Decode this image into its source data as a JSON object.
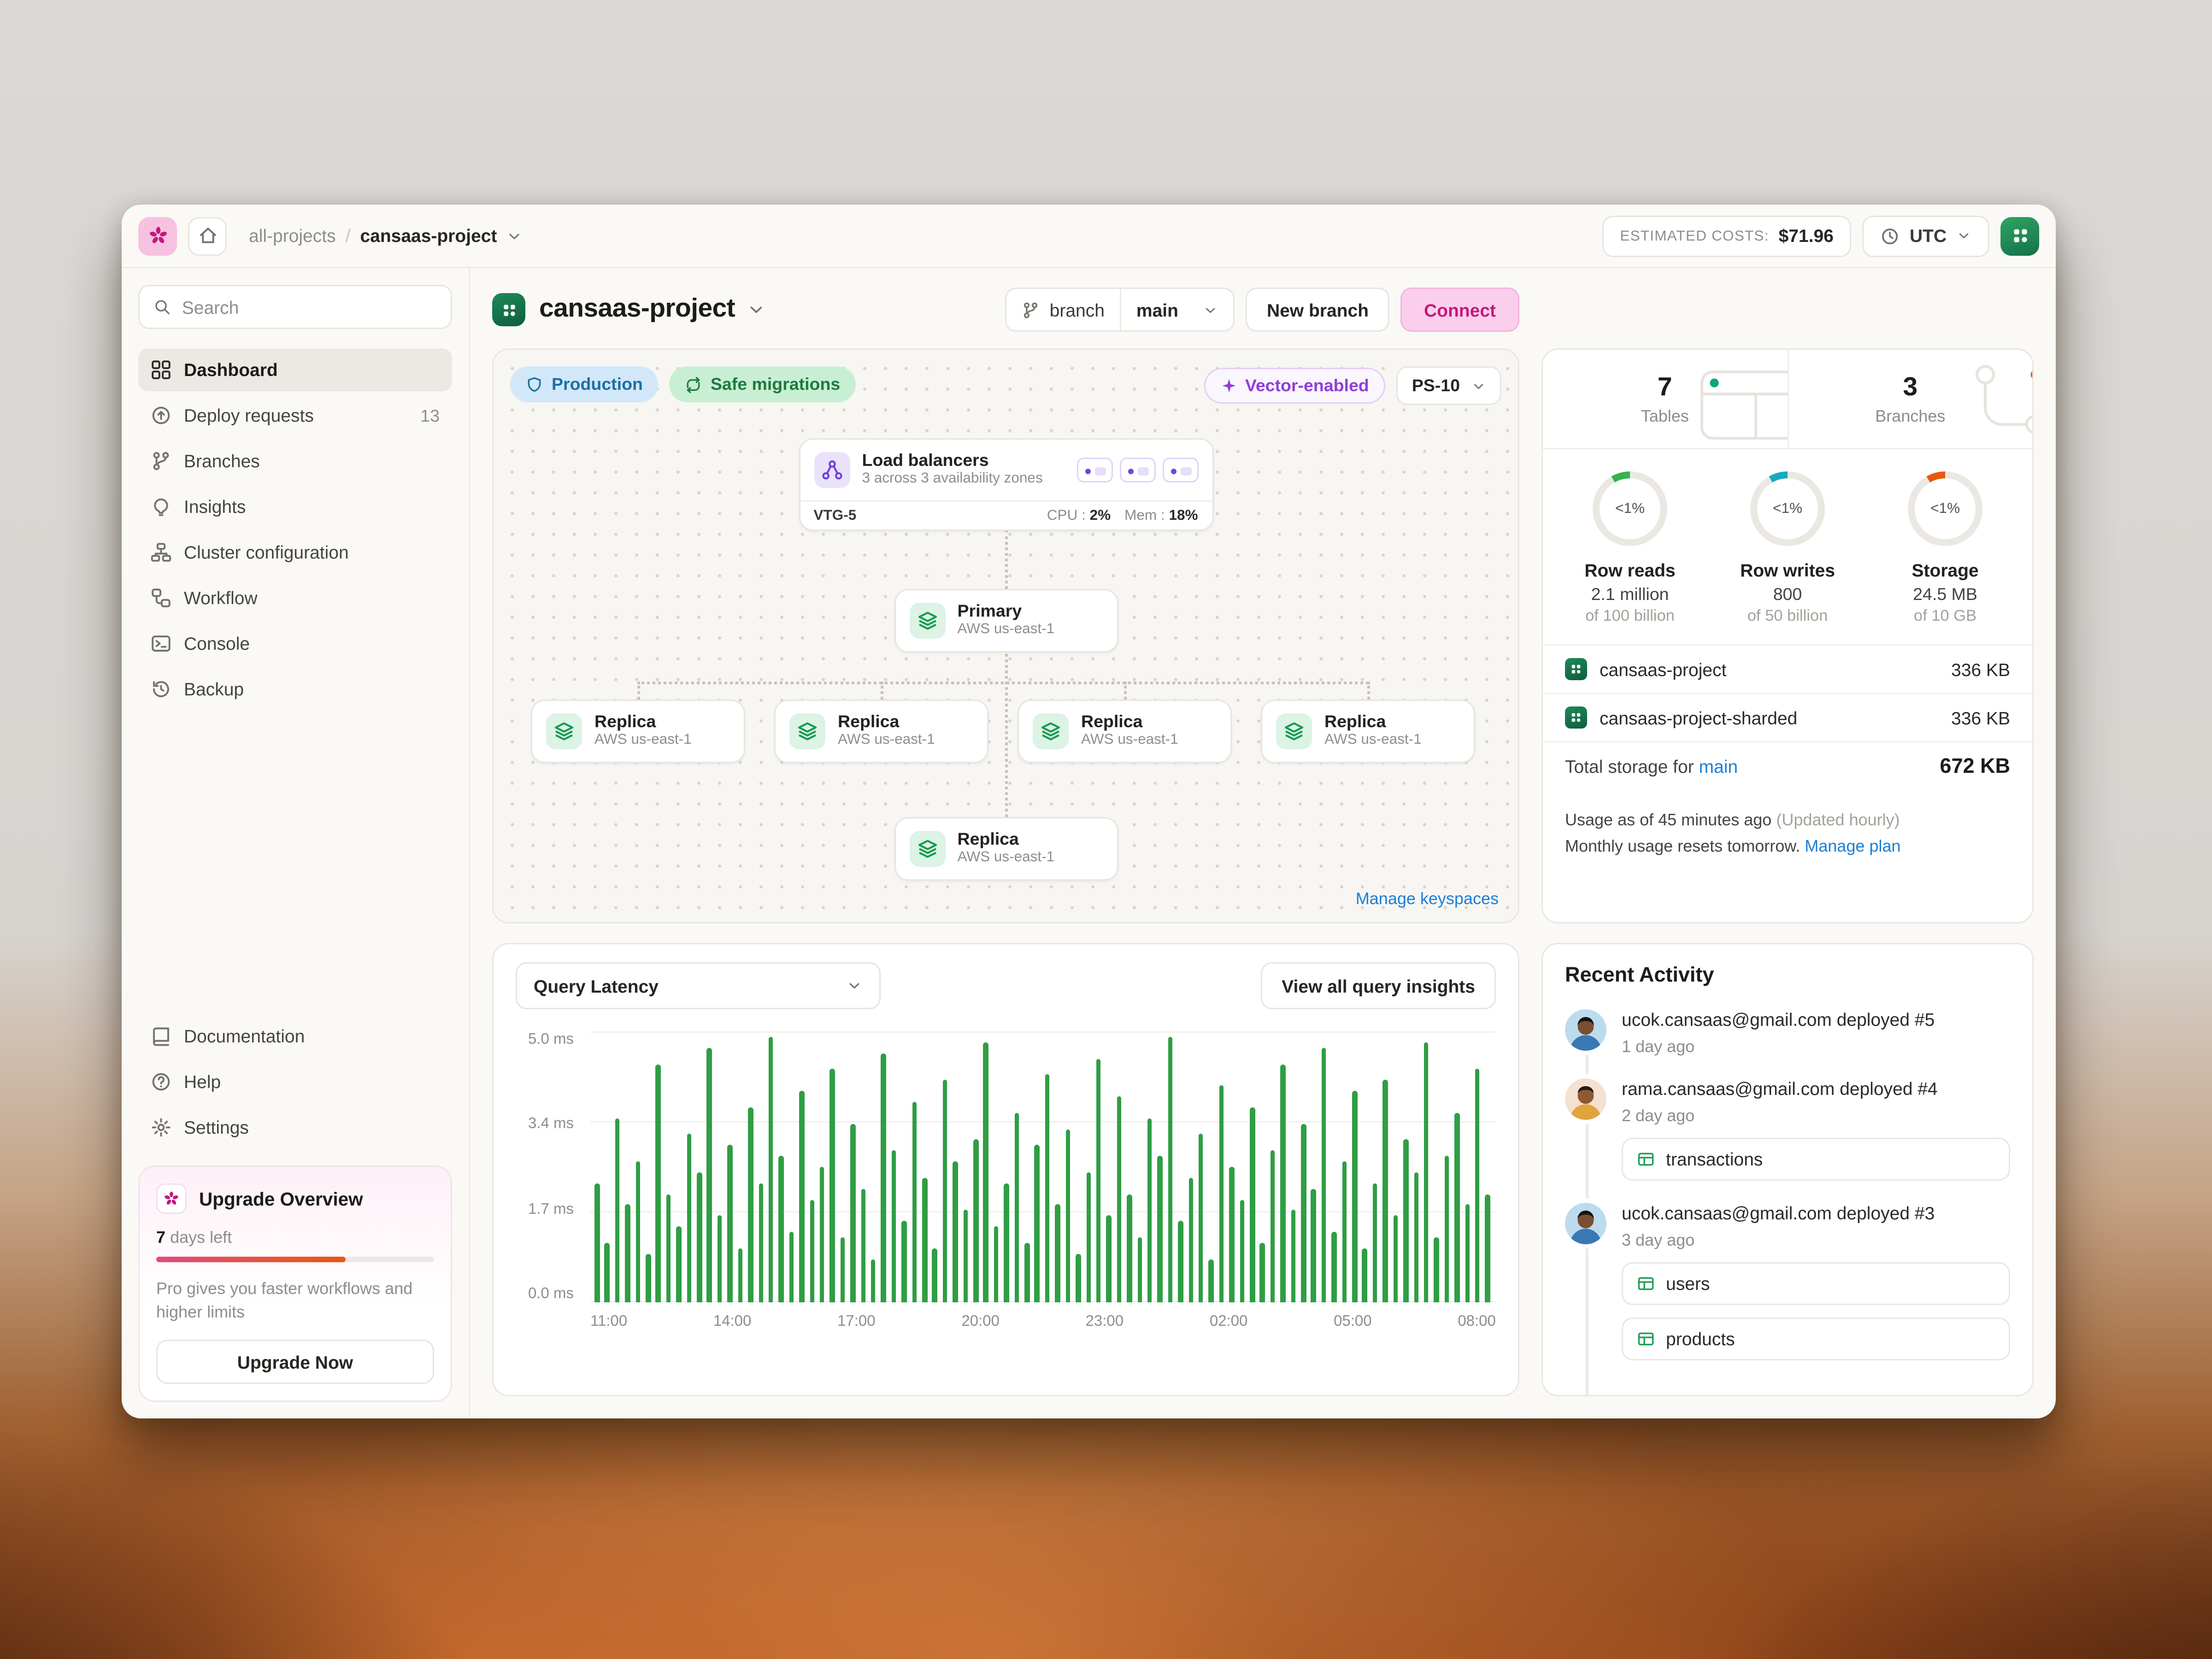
{
  "colors": {
    "accent_pink": "#c2187f",
    "connect_bg": "#fbcfec",
    "chart_green": "#2f9e44",
    "link_blue": "#1c7ed6",
    "production_blue": "#1d6fa5",
    "safe_green": "#1f7a3d",
    "vector_purple": "#8f3ed6"
  },
  "topbar": {
    "breadcrumb": {
      "parent": "all-projects",
      "separator": "/",
      "current": "cansaas-project"
    },
    "estimated_costs": {
      "label": "ESTIMATED COSTS:",
      "value": "$71.96"
    },
    "timezone": "UTC"
  },
  "sidebar": {
    "search_placeholder": "Search",
    "items": [
      {
        "label": "Dashboard"
      },
      {
        "label": "Deploy requests",
        "badge": "13"
      },
      {
        "label": "Branches"
      },
      {
        "label": "Insights"
      },
      {
        "label": "Cluster configuration"
      },
      {
        "label": "Workflow"
      },
      {
        "label": "Console"
      },
      {
        "label": "Backup"
      }
    ],
    "footer_items": [
      {
        "label": "Documentation"
      },
      {
        "label": "Help"
      },
      {
        "label": "Settings"
      }
    ],
    "upgrade": {
      "title": "Upgrade Overview",
      "days_value": "7",
      "days_label": "days left",
      "progress_pct": 68,
      "description": "Pro gives you faster workflows and higher limits",
      "button_label": "Upgrade Now"
    }
  },
  "header": {
    "title": "cansaas-project",
    "branch_label": "branch",
    "branch_value": "main",
    "new_branch_label": "New branch",
    "connect_label": "Connect"
  },
  "cluster": {
    "badges": {
      "production": "Production",
      "safe_migrations": "Safe migrations",
      "vector": "Vector-enabled",
      "size": "PS-10"
    },
    "load_balancers": {
      "title": "Load balancers",
      "subtitle": "3 across 3 availability zones"
    },
    "vtg": {
      "label": "VTG-5",
      "cpu_label": "CPU :",
      "cpu_value": "2%",
      "mem_label": "Mem :",
      "mem_value": "18%"
    },
    "primary": {
      "title": "Primary",
      "subtitle": "AWS us-east-1"
    },
    "replicas": [
      {
        "title": "Replica",
        "subtitle": "AWS us-east-1"
      },
      {
        "title": "Replica",
        "subtitle": "AWS us-east-1"
      },
      {
        "title": "Replica",
        "subtitle": "AWS us-east-1"
      },
      {
        "title": "Replica",
        "subtitle": "AWS us-east-1"
      },
      {
        "title": "Replica",
        "subtitle": "AWS us-east-1"
      }
    ],
    "manage_link": "Manage keyspaces"
  },
  "latency": {
    "selector_label": "Query Latency",
    "view_all_label": "View all query insights",
    "chart_data": {
      "type": "bar",
      "title": "Query Latency",
      "unit": "ms",
      "ylim": [
        0,
        5
      ],
      "grid": true,
      "yticks": [
        "5.0 ms",
        "3.4 ms",
        "1.7 ms",
        "0.0 ms"
      ],
      "xticks": [
        "11:00",
        "14:00",
        "17:00",
        "20:00",
        "23:00",
        "02:00",
        "05:00",
        "08:00"
      ],
      "bar_color": "#2f9e44",
      "values": [
        2.2,
        1.1,
        3.4,
        1.8,
        2.6,
        0.9,
        4.4,
        2.0,
        1.4,
        3.1,
        2.4,
        4.7,
        1.6,
        2.9,
        1.0,
        3.6,
        2.2,
        4.9,
        2.7,
        1.3,
        3.9,
        1.9,
        2.5,
        4.3,
        1.2,
        3.3,
        2.1,
        0.8,
        4.6,
        2.8,
        1.5,
        3.7,
        2.3,
        1.0,
        4.1,
        2.6,
        1.7,
        3.0,
        4.8,
        1.4,
        2.2,
        3.5,
        1.1,
        2.9,
        4.2,
        1.8,
        3.2,
        0.9,
        2.4,
        4.5,
        1.6,
        3.8,
        2.0,
        1.2,
        3.4,
        2.7,
        4.9,
        1.5,
        2.3,
        3.1,
        0.8,
        4.0,
        2.5,
        1.9,
        3.6,
        1.1,
        2.8,
        4.4,
        1.7,
        3.3,
        2.1,
        4.7,
        1.3,
        2.6,
        3.9,
        1.0,
        2.2,
        4.1,
        1.6,
        3.0,
        2.4,
        4.8,
        1.2,
        2.7,
        3.5,
        1.8,
        4.3,
        2.0
      ]
    }
  },
  "usage": {
    "tables": {
      "value": "7",
      "label": "Tables"
    },
    "branches": {
      "value": "3",
      "label": "Branches"
    },
    "gauges": [
      {
        "percent": "<1%",
        "title": "Row reads",
        "value": "2.1 million",
        "denom": "of 100 billion",
        "color": "#37b24d"
      },
      {
        "percent": "<1%",
        "title": "Row writes",
        "value": "800",
        "denom": "of 50 billion",
        "color": "#15aabf"
      },
      {
        "percent": "<1%",
        "title": "Storage",
        "value": "24.5 MB",
        "denom": "of 10 GB",
        "color": "#e8590c"
      }
    ],
    "rows": [
      {
        "name": "cansaas-project",
        "size": "336 KB"
      },
      {
        "name": "cansaas-project-sharded",
        "size": "336 KB"
      }
    ],
    "total_prefix": "Total storage for",
    "total_branch": "main",
    "total_value": "672 KB",
    "note1": "Usage as of 45 minutes ago",
    "note1_sub": "(Updated hourly)",
    "note2": "Monthly usage resets tomorrow.",
    "manage_plan": "Manage plan"
  },
  "activity": {
    "title": "Recent Activity",
    "items": [
      {
        "text": "ucok.cansaas@gmail.com deployed #5",
        "time": "1 day ago",
        "tables": []
      },
      {
        "text": "rama.cansaas@gmail.com deployed #4",
        "time": "2 day ago",
        "tables": [
          "transactions"
        ]
      },
      {
        "text": "ucok.cansaas@gmail.com deployed #3",
        "time": "3 day ago",
        "tables": [
          "users",
          "products"
        ]
      }
    ]
  }
}
